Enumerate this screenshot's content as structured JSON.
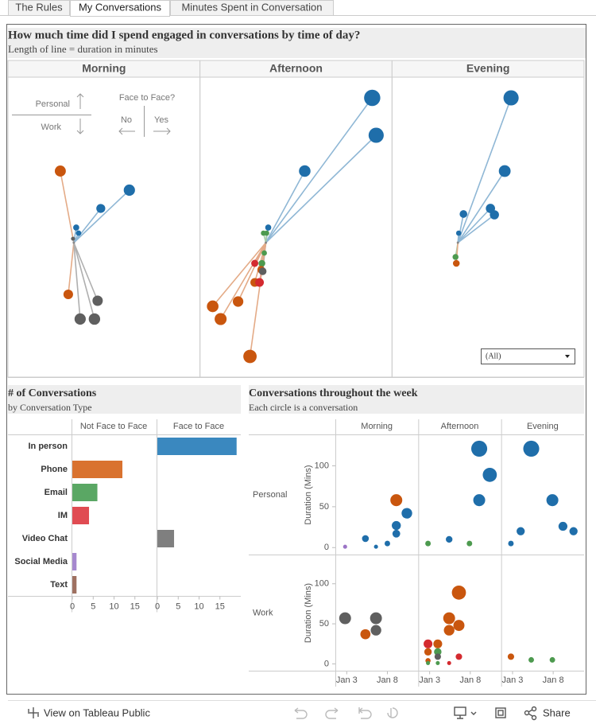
{
  "tabs": [
    "The Rules",
    "My Conversations",
    "Minutes Spent in Conversation"
  ],
  "chart_data": [
    {
      "type": "spoke",
      "title": "How much time did I spend engaged in conversations by time of day?",
      "subtitle": "Length of line = duration in minutes",
      "xlim": [
        -83,
        159
      ],
      "ylim": [
        -169,
        208
      ],
      "panels": [
        {
          "name": "Morning",
          "x": [
            -17,
            70,
            34,
            3,
            6,
            -1,
            -7,
            30,
            8,
            26
          ],
          "y": [
            90,
            66,
            43,
            19,
            12,
            5,
            -65,
            -73,
            -96,
            -96
          ],
          "colors": [
            "#c9560e",
            "#1f6eaa",
            "#1f6eaa",
            "#1f6eaa",
            "#1f6eaa",
            "#5f5f5f",
            "#c9560e",
            "#5f5f5f",
            "#5f5f5f",
            "#5f5f5f"
          ]
        },
        {
          "name": "Afternoon",
          "x": [
            134,
            139,
            49,
            3,
            1,
            -3,
            -2,
            -14,
            -5,
            -6,
            -4,
            -14,
            -8,
            -35,
            -67,
            -57,
            -20
          ],
          "y": [
            182,
            135,
            90,
            19,
            12,
            12,
            -13,
            -26,
            -26,
            -34,
            -36,
            -50,
            -50,
            -74,
            -80,
            -96,
            -143
          ],
          "colors": [
            "#1f6eaa",
            "#1f6eaa",
            "#1f6eaa",
            "#1f6eaa",
            "#4d9a4f",
            "#4d9a4f",
            "#4d9a4f",
            "#d42a2f",
            "#4d9a4f",
            "#c9560e",
            "#5f5f5f",
            "#c9560e",
            "#d42a2f",
            "#c9560e",
            "#c9560e",
            "#c9560e",
            "#c9560e"
          ]
        },
        {
          "name": "Evening",
          "x": [
            67,
            59,
            7,
            41,
            46,
            1,
            -3,
            -2
          ],
          "y": [
            182,
            90,
            36,
            43,
            35,
            12,
            -18,
            -26
          ],
          "colors": [
            "#1f6eaa",
            "#1f6eaa",
            "#1f6eaa",
            "#1f6eaa",
            "#1f6eaa",
            "#1f6eaa",
            "#4d9a4f",
            "#c9560e"
          ]
        }
      ],
      "legend": {
        "up": "Personal",
        "down": "Work",
        "question": "Face to Face?",
        "left": "No",
        "right": "Yes"
      },
      "filter": "(All)"
    },
    {
      "type": "bar",
      "title": "# of Conversations",
      "subtitle": "by Conversation Type",
      "categories": [
        "In person",
        "Phone",
        "Email",
        "IM",
        "Video Chat",
        "Social Media",
        "Text"
      ],
      "colors": [
        "#3a88bf",
        "#d9722f",
        "#5aa764",
        "#e04b52",
        "#7f7f7f",
        "#a688cf",
        "#9e7060"
      ],
      "series": [
        {
          "name": "Not Face to Face",
          "values": [
            null,
            12,
            6,
            4,
            null,
            1,
            1
          ]
        },
        {
          "name": "Face to Face",
          "values": [
            19,
            null,
            null,
            null,
            4,
            null,
            null
          ]
        }
      ],
      "xlim": [
        -0.2,
        20
      ],
      "xticks": [
        0,
        5,
        10,
        15
      ]
    },
    {
      "type": "scatter",
      "title": "Conversations throughout the week",
      "subtitle": "Each circle is a conversation",
      "columns": [
        "Morning",
        "Afternoon",
        "Evening"
      ],
      "y_label": "Duration (Mins)",
      "yticks": [
        0,
        50,
        100
      ],
      "xlim": [
        1.6,
        11.8
      ],
      "xticks": [
        {
          "value": 3,
          "label": "Jan 3"
        },
        {
          "value": 8,
          "label": "Jan 8"
        }
      ],
      "rows": [
        {
          "name": "Personal",
          "ylim": [
            -9,
            138
          ],
          "panels": [
            {
              "x": [
                2.8,
                5.3,
                6.6,
                8,
                9.1,
                9.1,
                10.4,
                9.1
              ],
              "y": [
                1,
                11,
                1,
                5,
                17,
                27,
                42,
                58
              ],
              "colors": [
                "#9b74c6",
                "#1f6eaa",
                "#1f6eaa",
                "#1f6eaa",
                "#1f6eaa",
                "#1f6eaa",
                "#1f6eaa",
                "#c9560e"
              ]
            },
            {
              "x": [
                2.8,
                5.4,
                7.9,
                9.1,
                10.4,
                9.1
              ],
              "y": [
                5,
                10,
                5,
                58,
                89,
                121
              ],
              "colors": [
                "#4d9a4f",
                "#1f6eaa",
                "#4d9a4f",
                "#1f6eaa",
                "#1f6eaa",
                "#1f6eaa"
              ]
            },
            {
              "x": [
                2.8,
                4,
                5.3,
                7.9,
                9.2,
                10.5
              ],
              "y": [
                5,
                20,
                121,
                58,
                26,
                20
              ],
              "colors": [
                "#1f6eaa",
                "#1f6eaa",
                "#1f6eaa",
                "#1f6eaa",
                "#1f6eaa",
                "#1f6eaa"
              ]
            }
          ]
        },
        {
          "name": "Work",
          "ylim": [
            -9,
            136
          ],
          "panels": [
            {
              "x": [
                2.8,
                5.3,
                6.6,
                6.6
              ],
              "y": [
                57,
                37,
                57,
                42
              ],
              "colors": [
                "#5f5f5f",
                "#c9560e",
                "#5f5f5f",
                "#5f5f5f"
              ]
            },
            {
              "x": [
                2.8,
                2.8,
                2.8,
                2.8,
                4,
                4,
                4,
                4,
                5.4,
                5.4,
                5.4,
                6.6,
                6.6,
                6.6
              ],
              "y": [
                25,
                15,
                4,
                1,
                25,
                15,
                9,
                1,
                57,
                42,
                1,
                89,
                48,
                9
              ],
              "colors": [
                "#d42a2f",
                "#c9560e",
                "#c9560e",
                "#4d9a4f",
                "#c9560e",
                "#4d9a4f",
                "#5f5f5f",
                "#4d9a4f",
                "#c9560e",
                "#c9560e",
                "#d42a2f",
                "#c9560e",
                "#c9560e",
                "#d42a2f"
              ]
            },
            {
              "x": [
                2.8,
                5.3,
                7.9
              ],
              "y": [
                9,
                5,
                5
              ],
              "colors": [
                "#c9560e",
                "#4d9a4f",
                "#4d9a4f"
              ]
            }
          ]
        }
      ]
    }
  ],
  "footer": {
    "link": "View on Tableau Public",
    "share": "Share"
  }
}
